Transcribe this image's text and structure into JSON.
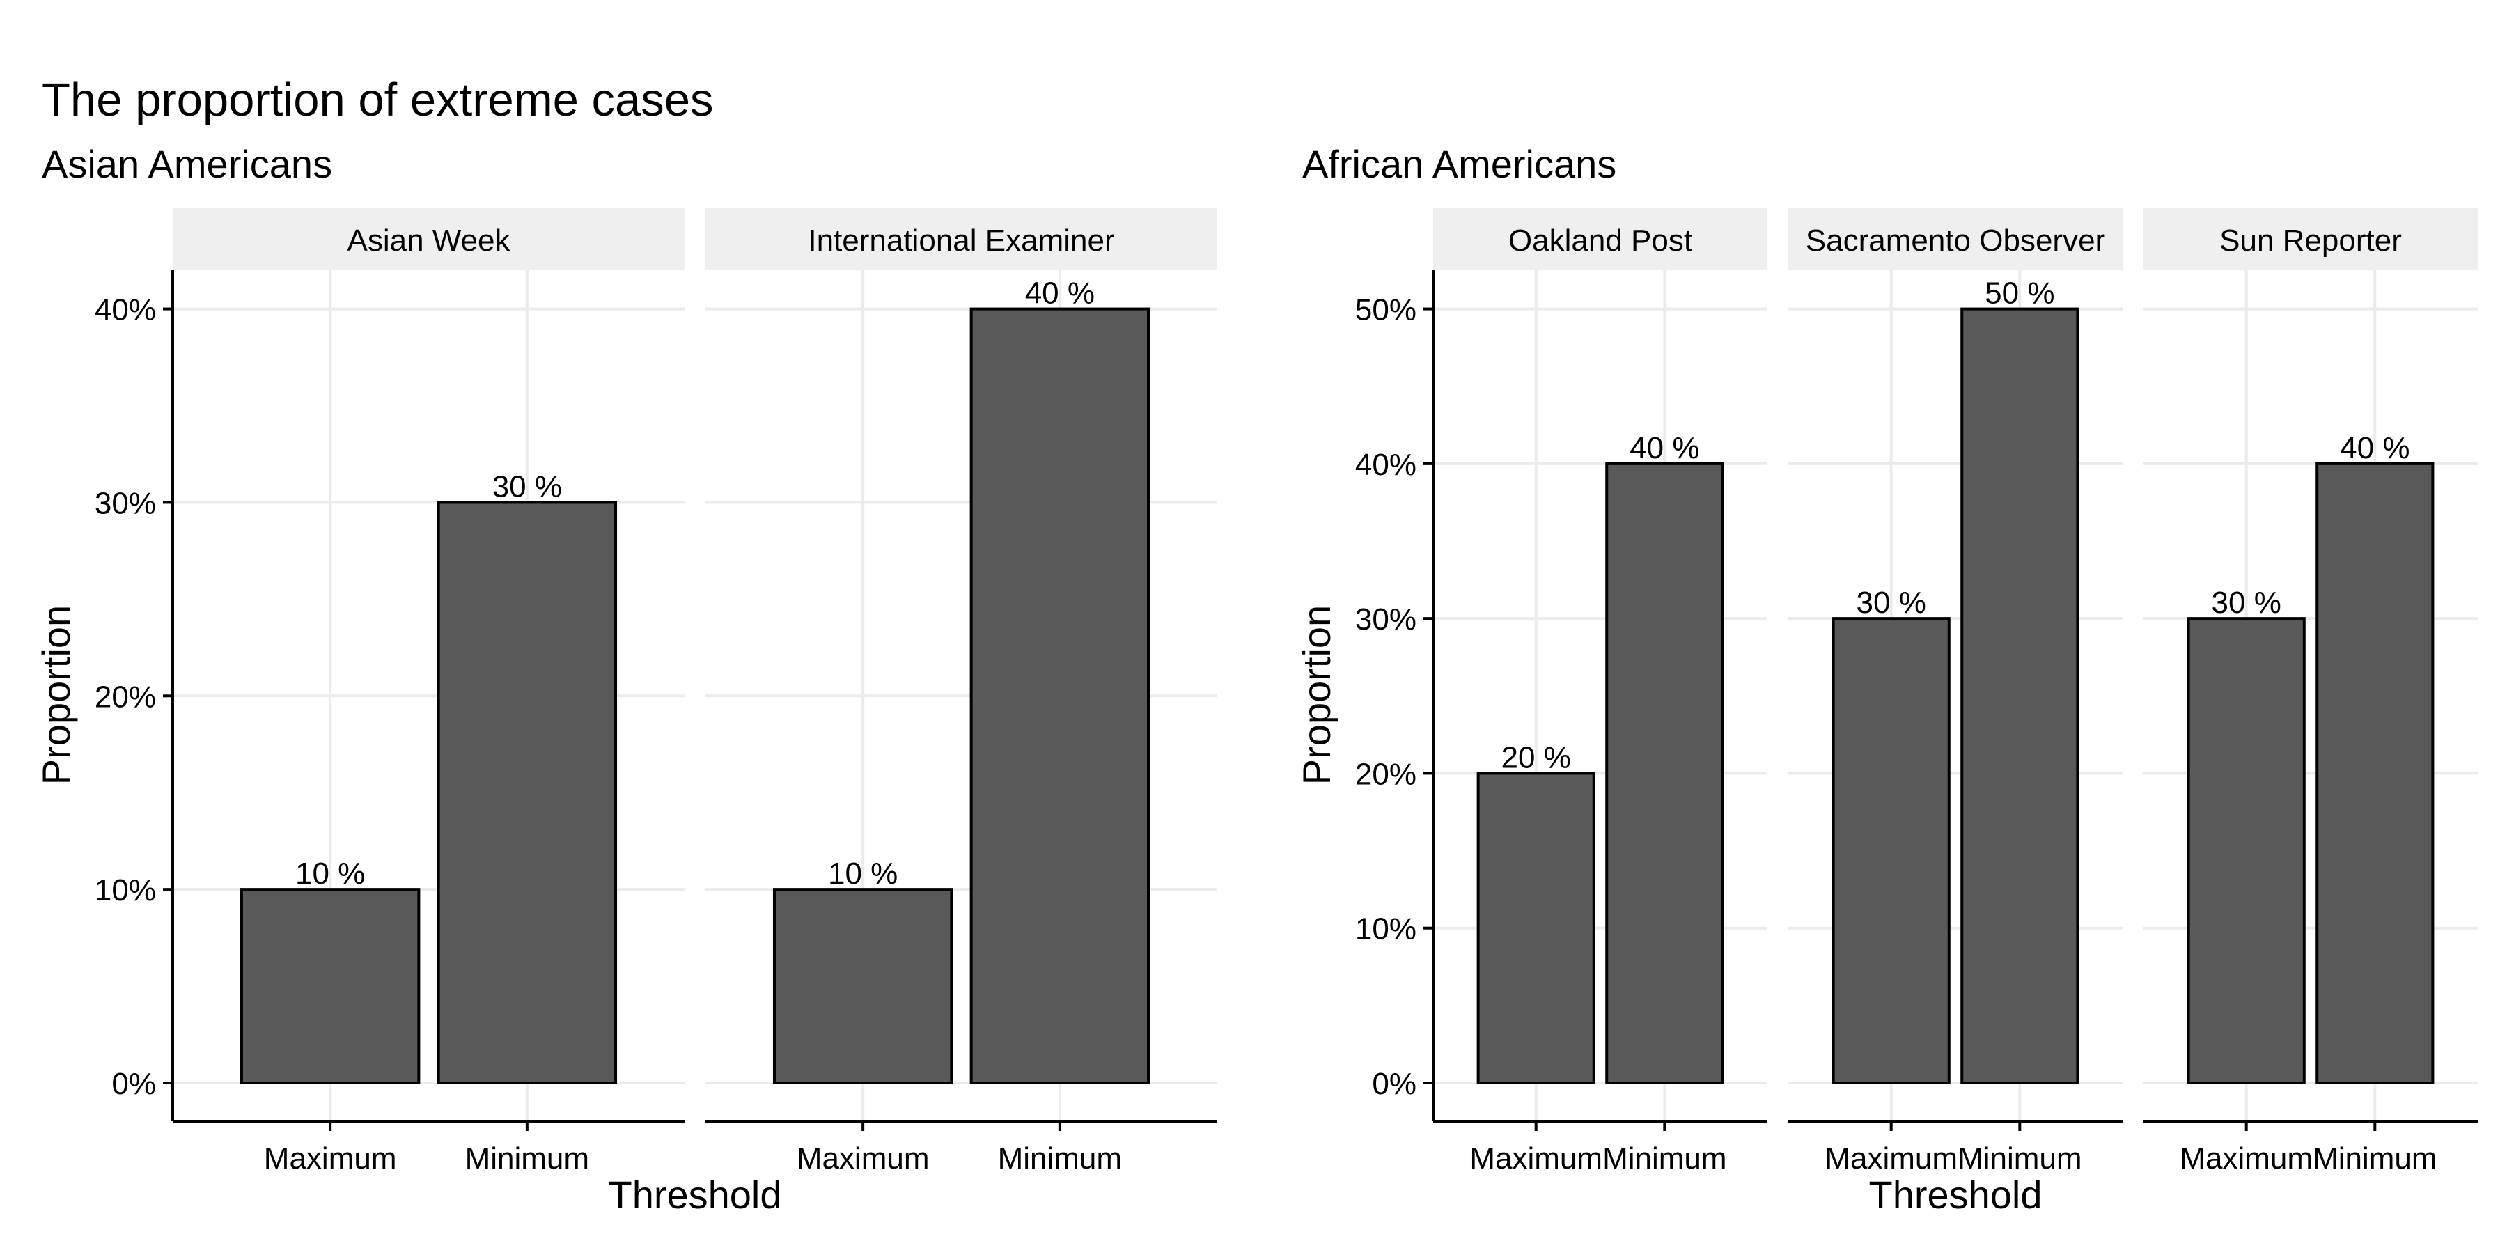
{
  "title": "The proportion of extreme cases",
  "chart_data": [
    {
      "type": "bar",
      "title": "Asian Americans",
      "xlabel": "Threshold",
      "ylabel": "Proportion",
      "categories": [
        "Maximum",
        "Minimum"
      ],
      "ylim": [
        0,
        0.42
      ],
      "yticks": [
        0,
        0.1,
        0.2,
        0.3,
        0.4
      ],
      "ytick_labels": [
        "0%",
        "10%",
        "20%",
        "30%",
        "40%"
      ],
      "bar_color": "#595959",
      "grid": true,
      "facets": [
        {
          "name": "Asian Week",
          "values": [
            0.1,
            0.3
          ],
          "labels": [
            "10 %",
            "30 %"
          ]
        },
        {
          "name": "International Examiner",
          "values": [
            0.1,
            0.4
          ],
          "labels": [
            "10 %",
            "40 %"
          ]
        }
      ]
    },
    {
      "type": "bar",
      "title": "African Americans",
      "xlabel": "Threshold",
      "ylabel": "Proportion",
      "categories": [
        "Maximum",
        "Minimum"
      ],
      "ylim": [
        0,
        0.525
      ],
      "yticks": [
        0,
        0.1,
        0.2,
        0.3,
        0.4,
        0.5
      ],
      "ytick_labels": [
        "0%",
        "10%",
        "20%",
        "30%",
        "40%",
        "50%"
      ],
      "bar_color": "#595959",
      "grid": true,
      "facets": [
        {
          "name": "Oakland Post",
          "values": [
            0.2,
            0.4
          ],
          "labels": [
            "20 %",
            "40 %"
          ]
        },
        {
          "name": "Sacramento Observer",
          "values": [
            0.3,
            0.5
          ],
          "labels": [
            "30 %",
            "50 %"
          ]
        },
        {
          "name": "Sun Reporter",
          "values": [
            0.3,
            0.4
          ],
          "labels": [
            "30 %",
            "40 %"
          ]
        }
      ]
    }
  ],
  "colors": {
    "strip_background": "#efefef",
    "grid": "#ebebeb",
    "bar_outline": "#000000"
  }
}
